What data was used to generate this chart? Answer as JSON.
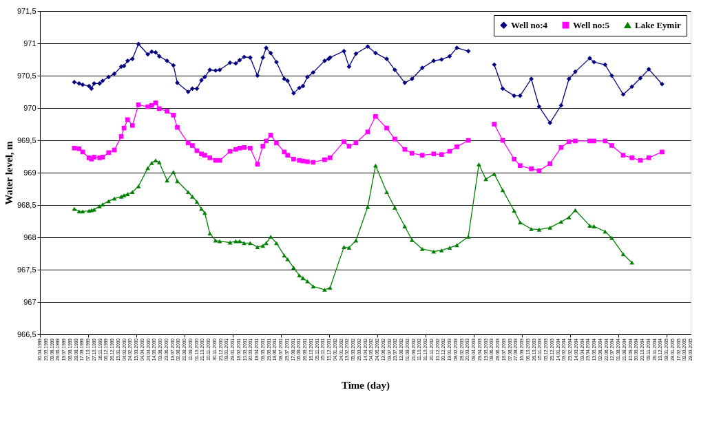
{
  "chart_data": {
    "type": "line",
    "xlabel": "Time (day)",
    "ylabel": "Water level, m",
    "grid": "y",
    "legend": "top right",
    "line_style": "solid",
    "xlim": [
      "1999-04-30",
      "2005-03-29"
    ],
    "ylim": [
      966.5,
      971.5
    ],
    "yticks": [
      {
        "value": 966.5,
        "label": "966,5"
      },
      {
        "value": 967,
        "label": "967"
      },
      {
        "value": 967.5,
        "label": "967,5"
      },
      {
        "value": 968,
        "label": "968"
      },
      {
        "value": 968.5,
        "label": "968,5"
      },
      {
        "value": 969,
        "label": "969"
      },
      {
        "value": 969.5,
        "label": "969,5"
      },
      {
        "value": 970,
        "label": "970"
      },
      {
        "value": 970.5,
        "label": "970,5"
      },
      {
        "value": 971,
        "label": "971"
      },
      {
        "value": 971.5,
        "label": "971,5"
      }
    ],
    "xticks": [
      {
        "value": "1999-04-30",
        "label": "30.04.1999"
      },
      {
        "value": "1999-05-20",
        "label": "20.05.1999"
      },
      {
        "value": "1999-06-09",
        "label": "09.06.1999"
      },
      {
        "value": "1999-06-29",
        "label": "29.06.1999"
      },
      {
        "value": "1999-07-19",
        "label": "19.07.1999"
      },
      {
        "value": "1999-08-08",
        "label": "08.08.1999"
      },
      {
        "value": "1999-08-28",
        "label": "28.08.1999"
      },
      {
        "value": "1999-09-17",
        "label": "17.09.1999"
      },
      {
        "value": "1999-10-07",
        "label": "07.10.1999"
      },
      {
        "value": "1999-10-27",
        "label": "27.10.1999"
      },
      {
        "value": "1999-11-16",
        "label": "16.11.1999"
      },
      {
        "value": "1999-12-06",
        "label": "06.12.1999"
      },
      {
        "value": "1999-12-26",
        "label": "26.12.1999"
      },
      {
        "value": "2000-01-15",
        "label": "15.01.2000"
      },
      {
        "value": "2000-02-04",
        "label": "04.02.2000"
      },
      {
        "value": "2000-02-24",
        "label": "24.02.2000"
      },
      {
        "value": "2000-03-15",
        "label": "15.03.2000"
      },
      {
        "value": "2000-04-04",
        "label": "04.04.2000"
      },
      {
        "value": "2000-04-24",
        "label": "24.04.2000"
      },
      {
        "value": "2000-05-14",
        "label": "14.05.2000"
      },
      {
        "value": "2000-06-03",
        "label": "03.06.2000"
      },
      {
        "value": "2000-06-23",
        "label": "23.06.2000"
      },
      {
        "value": "2000-07-13",
        "label": "13.07.2000"
      },
      {
        "value": "2000-08-02",
        "label": "02.08.2000"
      },
      {
        "value": "2000-08-22",
        "label": "22.08.2000"
      },
      {
        "value": "2000-09-11",
        "label": "11.09.2000"
      },
      {
        "value": "2000-10-01",
        "label": "01.10.2000"
      },
      {
        "value": "2000-10-21",
        "label": "21.10.2000"
      },
      {
        "value": "2000-11-10",
        "label": "10.11.2000"
      },
      {
        "value": "2000-11-30",
        "label": "30.11.2000"
      },
      {
        "value": "2000-12-20",
        "label": "20.12.2000"
      },
      {
        "value": "2001-01-09",
        "label": "09.01.2001"
      },
      {
        "value": "2001-01-29",
        "label": "29.01.2001"
      },
      {
        "value": "2001-02-18",
        "label": "18.02.2001"
      },
      {
        "value": "2001-03-10",
        "label": "10.03.2001"
      },
      {
        "value": "2001-03-30",
        "label": "30.03.2001"
      },
      {
        "value": "2001-04-19",
        "label": "19.04.2001"
      },
      {
        "value": "2001-05-09",
        "label": "09.05.2001"
      },
      {
        "value": "2001-05-29",
        "label": "29.05.2001"
      },
      {
        "value": "2001-06-18",
        "label": "18.06.2001"
      },
      {
        "value": "2001-07-08",
        "label": "08.07.2001"
      },
      {
        "value": "2001-07-28",
        "label": "28.07.2001"
      },
      {
        "value": "2001-08-17",
        "label": "17.08.2001"
      },
      {
        "value": "2001-09-06",
        "label": "06.09.2001"
      },
      {
        "value": "2001-09-26",
        "label": "26.09.2001"
      },
      {
        "value": "2001-10-16",
        "label": "16.10.2001"
      },
      {
        "value": "2001-11-05",
        "label": "05.11.2001"
      },
      {
        "value": "2001-11-25",
        "label": "25.11.2001"
      },
      {
        "value": "2001-12-15",
        "label": "15.12.2001"
      },
      {
        "value": "2002-01-04",
        "label": "04.01.2002"
      },
      {
        "value": "2002-01-24",
        "label": "24.01.2002"
      },
      {
        "value": "2002-02-13",
        "label": "13.02.2002"
      },
      {
        "value": "2002-03-05",
        "label": "05.03.2002"
      },
      {
        "value": "2002-03-25",
        "label": "25.03.2002"
      },
      {
        "value": "2002-04-14",
        "label": "14.04.2002"
      },
      {
        "value": "2002-05-04",
        "label": "04.05.2002"
      },
      {
        "value": "2002-05-24",
        "label": "24.05.2002"
      },
      {
        "value": "2002-06-13",
        "label": "13.06.2002"
      },
      {
        "value": "2002-07-03",
        "label": "03.07.2002"
      },
      {
        "value": "2002-07-23",
        "label": "23.07.2002"
      },
      {
        "value": "2002-08-12",
        "label": "12.08.2002"
      },
      {
        "value": "2002-09-01",
        "label": "01.09.2002"
      },
      {
        "value": "2002-09-21",
        "label": "21.09.2002"
      },
      {
        "value": "2002-10-11",
        "label": "11.10.2002"
      },
      {
        "value": "2002-10-31",
        "label": "31.10.2002"
      },
      {
        "value": "2002-11-20",
        "label": "20.11.2002"
      },
      {
        "value": "2002-12-10",
        "label": "10.12.2002"
      },
      {
        "value": "2002-12-30",
        "label": "30.12.2002"
      },
      {
        "value": "2003-01-19",
        "label": "19.01.2003"
      },
      {
        "value": "2003-02-08",
        "label": "08.02.2003"
      },
      {
        "value": "2003-02-28",
        "label": "28.02.2003"
      },
      {
        "value": "2003-03-20",
        "label": "20.03.2003"
      },
      {
        "value": "2003-04-09",
        "label": "09.04.2003"
      },
      {
        "value": "2003-04-29",
        "label": "29.04.2003"
      },
      {
        "value": "2003-05-19",
        "label": "19.05.2003"
      },
      {
        "value": "2003-06-08",
        "label": "08.06.2003"
      },
      {
        "value": "2003-06-28",
        "label": "28.06.2003"
      },
      {
        "value": "2003-07-18",
        "label": "18.07.2003"
      },
      {
        "value": "2003-08-07",
        "label": "07.08.2003"
      },
      {
        "value": "2003-08-27",
        "label": "27.08.2003"
      },
      {
        "value": "2003-09-16",
        "label": "16.09.2003"
      },
      {
        "value": "2003-10-06",
        "label": "06.10.2003"
      },
      {
        "value": "2003-10-26",
        "label": "26.10.2003"
      },
      {
        "value": "2003-11-15",
        "label": "15.11.2003"
      },
      {
        "value": "2003-12-05",
        "label": "05.12.2003"
      },
      {
        "value": "2003-12-25",
        "label": "25.12.2003"
      },
      {
        "value": "2004-01-14",
        "label": "14.01.2004"
      },
      {
        "value": "2004-02-03",
        "label": "03.02.2004"
      },
      {
        "value": "2004-02-23",
        "label": "23.02.2004"
      },
      {
        "value": "2004-03-14",
        "label": "14.03.2004"
      },
      {
        "value": "2004-04-03",
        "label": "03.04.2004"
      },
      {
        "value": "2004-04-23",
        "label": "23.04.2004"
      },
      {
        "value": "2004-05-13",
        "label": "13.05.2004"
      },
      {
        "value": "2004-06-02",
        "label": "02.06.2004"
      },
      {
        "value": "2004-06-22",
        "label": "22.06.2004"
      },
      {
        "value": "2004-07-12",
        "label": "12.07.2004"
      },
      {
        "value": "2004-08-01",
        "label": "01.08.2004"
      },
      {
        "value": "2004-08-21",
        "label": "21.08.2004"
      },
      {
        "value": "2004-09-10",
        "label": "10.09.2004"
      },
      {
        "value": "2004-09-30",
        "label": "30.09.2004"
      },
      {
        "value": "2004-10-20",
        "label": "20.10.2004"
      },
      {
        "value": "2004-11-09",
        "label": "09.11.2004"
      },
      {
        "value": "2004-11-29",
        "label": "29.11.2004"
      },
      {
        "value": "2004-12-19",
        "label": "19.12.2004"
      },
      {
        "value": "2005-01-08",
        "label": "08.01.2005"
      },
      {
        "value": "2005-01-28",
        "label": "28.01.2005"
      },
      {
        "value": "2005-02-17",
        "label": "17.02.2005"
      },
      {
        "value": "2005-03-09",
        "label": "09.03.2005"
      },
      {
        "value": "2005-03-29",
        "label": "29.03.2005"
      }
    ],
    "series": [
      {
        "name": "Well no:4",
        "color": "#000080",
        "marker": "diamond",
        "x": [
          "1999-08-22",
          "1999-09-07",
          "1999-09-19",
          "1999-10-10",
          "1999-10-18",
          "1999-10-27",
          "1999-11-14",
          "1999-11-24",
          "1999-12-14",
          "2000-01-02",
          "2000-01-25",
          "2000-02-03",
          "2000-02-15",
          "2000-03-02",
          "2000-03-22",
          "2000-04-22",
          "2000-05-05",
          "2000-05-18",
          "2000-05-30",
          "2000-06-25",
          "2000-07-16",
          "2000-07-29",
          "2000-09-03",
          "2000-09-17",
          "2000-10-02",
          "2000-10-17",
          "2000-10-28",
          "2000-11-14",
          "2000-12-03",
          "2000-12-17",
          "2001-01-20",
          "2001-02-08",
          "2001-02-21",
          "2001-03-08",
          "2001-03-28",
          "2001-04-21",
          "2001-05-09",
          "2001-05-20",
          "2001-06-04",
          "2001-06-23",
          "2001-07-19",
          "2001-07-30",
          "2001-08-19",
          "2001-09-07",
          "2001-09-19",
          "2001-10-04",
          "2001-10-23",
          "2001-11-30",
          "2001-12-13",
          "2001-12-18",
          "2002-02-02",
          "2002-02-19",
          "2002-03-14",
          "2002-04-22",
          "2002-05-18",
          "2002-06-24",
          "2002-07-21",
          "2002-08-23",
          "2002-09-16",
          "2002-10-20",
          "2002-11-27",
          "2002-12-23",
          "2003-01-19",
          "2003-02-12",
          "2003-03-22",
          "2003-04-26",
          "2003-06-16",
          "2003-07-14",
          "2003-08-21",
          "2003-09-10",
          "2003-10-17",
          "2003-11-12",
          "2003-12-18",
          "2004-01-24",
          "2004-02-19",
          "2004-03-11",
          "2004-04-28",
          "2004-05-12",
          "2004-06-18",
          "2004-07-10",
          "2004-08-17",
          "2004-09-15",
          "2004-10-13",
          "2004-11-10",
          "2004-12-24"
        ],
        "values": [
          970.4,
          970.38,
          970.36,
          970.34,
          970.3,
          970.38,
          970.38,
          970.42,
          970.48,
          970.53,
          970.64,
          970.65,
          970.73,
          970.76,
          970.99,
          970.83,
          970.87,
          970.86,
          970.8,
          970.73,
          970.66,
          970.39,
          970.25,
          970.3,
          970.3,
          970.43,
          970.48,
          970.59,
          970.58,
          970.59,
          970.7,
          970.69,
          970.74,
          970.79,
          970.78,
          970.5,
          970.78,
          970.93,
          970.85,
          970.71,
          970.45,
          970.42,
          970.23,
          970.31,
          970.34,
          970.48,
          970.55,
          970.73,
          970.76,
          970.78,
          970.88,
          970.64,
          970.84,
          970.95,
          970.85,
          970.76,
          970.59,
          970.39,
          970.45,
          970.62,
          970.73,
          970.75,
          970.8,
          970.93,
          970.88,
          null,
          970.67,
          970.3,
          970.19,
          970.19,
          970.45,
          970.02,
          969.77,
          970.04,
          970.45,
          970.56,
          970.77,
          970.71,
          970.67,
          970.5,
          970.21,
          970.33,
          970.46,
          970.6,
          970.37
        ]
      },
      {
        "name": "Well no:5",
        "color": "#ff00ff",
        "marker": "square",
        "x": [
          "1999-08-22",
          "1999-09-07",
          "1999-09-19",
          "1999-10-10",
          "1999-10-18",
          "1999-10-27",
          "1999-11-14",
          "1999-11-24",
          "1999-12-14",
          "2000-01-02",
          "2000-01-25",
          "2000-02-03",
          "2000-02-15",
          "2000-03-02",
          "2000-03-22",
          "2000-04-22",
          "2000-05-05",
          "2000-05-18",
          "2000-05-30",
          "2000-06-25",
          "2000-07-16",
          "2000-07-29",
          "2000-09-03",
          "2000-09-17",
          "2000-10-02",
          "2000-10-17",
          "2000-10-28",
          "2000-11-14",
          "2000-12-03",
          "2000-12-17",
          "2001-01-20",
          "2001-02-08",
          "2001-02-21",
          "2001-03-08",
          "2001-03-28",
          "2001-04-21",
          "2001-05-09",
          "2001-05-20",
          "2001-06-04",
          "2001-06-23",
          "2001-07-19",
          "2001-07-30",
          "2001-08-19",
          "2001-09-07",
          "2001-09-19",
          "2001-10-04",
          "2001-10-23",
          "2001-11-30",
          "2001-12-18",
          "2002-02-02",
          "2002-02-19",
          "2002-03-14",
          "2002-04-22",
          "2002-05-18",
          "2002-06-24",
          "2002-07-21",
          "2002-08-23",
          "2002-09-16",
          "2002-10-20",
          "2002-11-27",
          "2002-12-23",
          "2003-01-19",
          "2003-02-12",
          "2003-03-22",
          "2003-04-26",
          "2003-06-16",
          "2003-07-14",
          "2003-08-21",
          "2003-09-10",
          "2003-10-17",
          "2003-11-12",
          "2003-12-18",
          "2004-01-24",
          "2004-02-19",
          "2004-03-11",
          "2004-04-28",
          "2004-05-12",
          "2004-06-18",
          "2004-07-10",
          "2004-08-17",
          "2004-09-15",
          "2004-10-13",
          "2004-11-10",
          "2004-12-24"
        ],
        "values": [
          969.38,
          969.37,
          969.32,
          969.23,
          969.21,
          969.24,
          969.23,
          969.24,
          969.31,
          969.35,
          969.56,
          969.69,
          969.82,
          969.73,
          970.05,
          970.02,
          970.04,
          970.08,
          969.99,
          969.95,
          969.89,
          969.7,
          969.46,
          969.42,
          969.34,
          969.29,
          969.27,
          969.23,
          969.19,
          969.19,
          969.33,
          969.36,
          969.38,
          969.39,
          969.38,
          969.13,
          969.41,
          969.49,
          969.58,
          969.46,
          969.32,
          969.27,
          969.21,
          969.19,
          969.18,
          969.17,
          969.16,
          969.2,
          969.23,
          969.48,
          969.41,
          969.46,
          969.63,
          969.87,
          969.69,
          969.52,
          969.36,
          969.3,
          969.27,
          969.29,
          969.28,
          969.33,
          969.4,
          969.5,
          null,
          969.75,
          969.5,
          969.21,
          969.11,
          969.06,
          969.03,
          969.14,
          969.39,
          969.48,
          969.49,
          969.49,
          969.49,
          969.49,
          969.42,
          969.27,
          969.23,
          969.19,
          969.23,
          969.32
        ]
      },
      {
        "name": "Lake Eymir",
        "color": "#008000",
        "marker": "triangle",
        "x": [
          "1999-08-22",
          "1999-09-07",
          "1999-09-19",
          "1999-10-10",
          "1999-10-18",
          "1999-10-27",
          "1999-11-14",
          "1999-11-24",
          "1999-12-14",
          "2000-01-02",
          "2000-01-25",
          "2000-02-03",
          "2000-02-15",
          "2000-03-02",
          "2000-03-22",
          "2000-04-22",
          "2000-05-05",
          "2000-05-18",
          "2000-05-30",
          "2000-06-25",
          "2000-07-16",
          "2000-07-29",
          "2000-09-03",
          "2000-09-17",
          "2000-10-02",
          "2000-10-17",
          "2000-10-28",
          "2000-11-14",
          "2000-12-03",
          "2000-12-17",
          "2001-01-20",
          "2001-02-08",
          "2001-02-21",
          "2001-03-08",
          "2001-03-28",
          "2001-04-21",
          "2001-05-09",
          "2001-05-20",
          "2001-06-04",
          "2001-06-23",
          "2001-07-19",
          "2001-07-30",
          "2001-08-19",
          "2001-09-07",
          "2001-09-19",
          "2001-10-04",
          "2001-10-23",
          "2001-11-30",
          "2001-12-18",
          "2002-02-02",
          "2002-02-19",
          "2002-03-14",
          "2002-04-22",
          "2002-05-18",
          "2002-06-24",
          "2002-07-21",
          "2002-08-23",
          "2002-09-16",
          "2002-10-20",
          "2002-11-27",
          "2002-12-23",
          "2003-01-19",
          "2003-02-12",
          "2003-03-22",
          "2003-04-26",
          "2003-05-19",
          "2003-06-16",
          "2003-07-14",
          "2003-08-21",
          "2003-09-10",
          "2003-10-17",
          "2003-11-12",
          "2003-12-18",
          "2004-01-24",
          "2004-02-19",
          "2004-03-11",
          "2004-04-28",
          "2004-05-12",
          "2004-06-18",
          "2004-07-10",
          "2004-08-17",
          "2004-09-15"
        ],
        "values": [
          968.44,
          968.4,
          968.4,
          968.41,
          968.42,
          968.43,
          968.48,
          968.51,
          968.56,
          968.6,
          968.63,
          968.65,
          968.67,
          968.7,
          968.79,
          969.07,
          969.15,
          969.19,
          969.16,
          968.88,
          969.01,
          968.87,
          968.7,
          968.63,
          968.55,
          968.44,
          968.38,
          968.06,
          967.95,
          967.94,
          967.92,
          967.94,
          967.94,
          967.91,
          967.91,
          967.85,
          967.87,
          967.91,
          968.01,
          967.91,
          967.72,
          967.66,
          967.53,
          967.41,
          967.37,
          967.32,
          967.24,
          967.19,
          967.22,
          967.85,
          967.84,
          967.95,
          968.47,
          969.11,
          968.7,
          968.46,
          968.17,
          967.96,
          967.82,
          967.78,
          967.8,
          967.84,
          967.88,
          968.01,
          969.13,
          968.9,
          968.98,
          968.73,
          968.41,
          968.23,
          968.13,
          968.12,
          968.15,
          968.24,
          968.31,
          968.42,
          968.18,
          968.17,
          968.09,
          967.99,
          967.74,
          967.61
        ]
      }
    ]
  }
}
